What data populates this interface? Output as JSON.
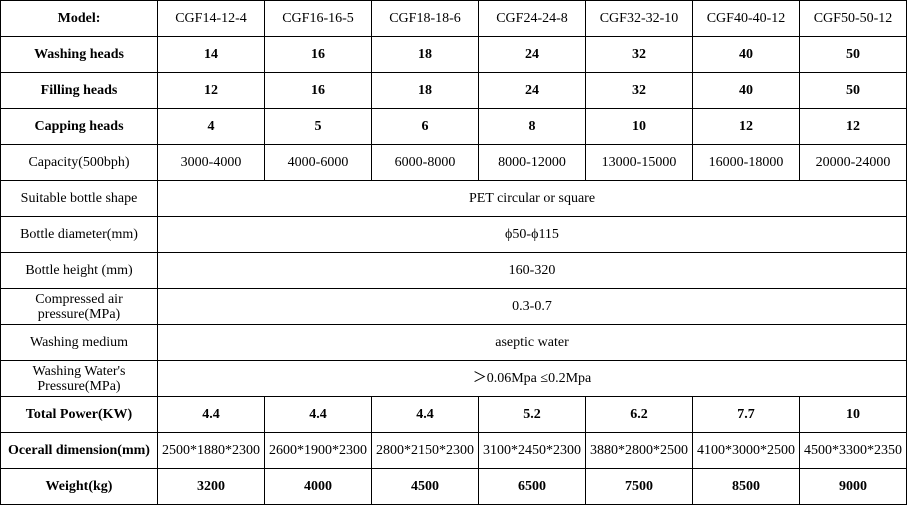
{
  "header": {
    "label": "Model:",
    "models": [
      "CGF14-12-4",
      "CGF16-16-5",
      "CGF18-18-6",
      "CGF24-24-8",
      "CGF32-32-10",
      "CGF40-40-12",
      "CGF50-50-12"
    ]
  },
  "rows": [
    {
      "label": "Washing heads",
      "values": [
        "14",
        "16",
        "18",
        "24",
        "32",
        "40",
        "50"
      ]
    },
    {
      "label": "Filling heads",
      "values": [
        "12",
        "16",
        "18",
        "24",
        "32",
        "40",
        "50"
      ]
    },
    {
      "label": "Capping heads",
      "values": [
        "4",
        "5",
        "6",
        "8",
        "10",
        "12",
        "12"
      ]
    },
    {
      "label": "Capacity(500bph)",
      "values": [
        "3000-4000",
        "4000-6000",
        "6000-8000",
        "8000-12000",
        "13000-15000",
        "16000-18000",
        "20000-24000"
      ]
    },
    {
      "label": "Suitable bottle shape",
      "span": "PET circular or square"
    },
    {
      "label": "Bottle diameter(mm)",
      "span": "ϕ50-ϕ115"
    },
    {
      "label": "Bottle height (mm)",
      "span": "160-320"
    },
    {
      "label": "Compressed air pressure(MPa)",
      "span": "0.3-0.7"
    },
    {
      "label": "Washing medium",
      "span": "aseptic water"
    },
    {
      "label": "Washing Water's Pressure(MPa)",
      "span": "＞0.06Mpa ≤0.2Mpa"
    },
    {
      "label": "Total Power(KW)",
      "values": [
        "4.4",
        "4.4",
        "4.4",
        "5.2",
        "6.2",
        "7.7",
        "10"
      ]
    },
    {
      "label": "Ocerall dimension(mm)",
      "values": [
        "2500*1880*2300",
        "2600*1900*2300",
        "2800*2150*2300",
        "3100*2450*2300",
        "3880*2800*2500",
        "4100*3000*2500",
        "4500*3300*2350"
      ]
    },
    {
      "label": "Weight(kg)",
      "values": [
        "3200",
        "4000",
        "4500",
        "6500",
        "7500",
        "8500",
        "9000"
      ]
    }
  ]
}
